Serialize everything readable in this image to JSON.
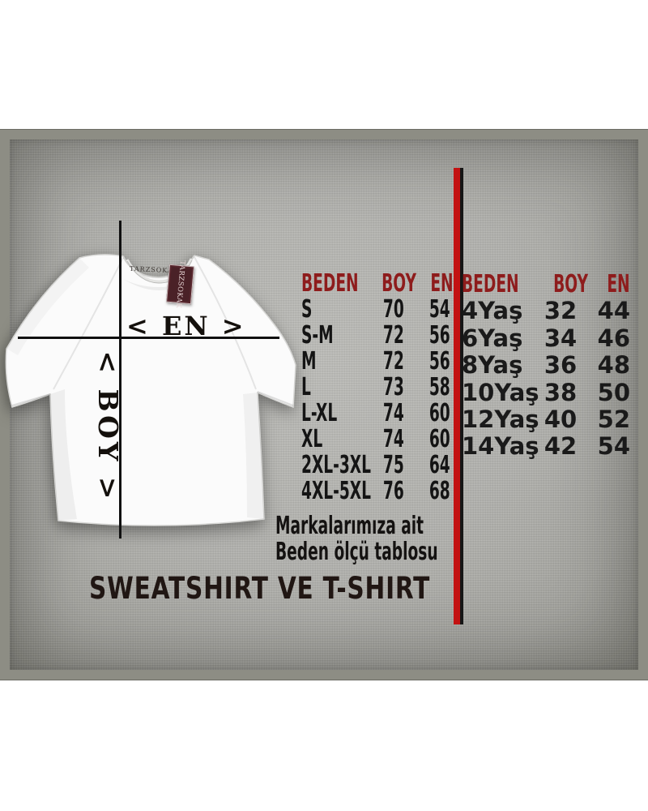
{
  "title": "SWEATSHIRT VE T-SHIRT",
  "note": {
    "line1": "Markalarımıza ait",
    "line2": "Beden ölçü tablosu"
  },
  "shirt": {
    "collar_brand": "TARZSOKAK",
    "tag_brand": "TARZSOKAK",
    "width_label": "< EN >",
    "length_label": "< BOY >"
  },
  "adult_table": {
    "headers": [
      "BEDEN",
      "BOY",
      "EN"
    ],
    "rows": [
      [
        "S",
        "70",
        "54"
      ],
      [
        "S-M",
        "72",
        "56"
      ],
      [
        "M",
        "72",
        "56"
      ],
      [
        "L",
        "73",
        "58"
      ],
      [
        "L-XL",
        "74",
        "60"
      ],
      [
        "XL",
        "74",
        "60"
      ],
      [
        "2XL-3XL",
        "75",
        "64"
      ],
      [
        "4XL-5XL",
        "76",
        "68"
      ]
    ]
  },
  "kids_table": {
    "headers": [
      "BEDEN",
      "BOY",
      "EN"
    ],
    "rows": [
      [
        "4Yaş",
        "32",
        "44"
      ],
      [
        "6Yaş",
        "34",
        "46"
      ],
      [
        "8Yaş",
        "36",
        "48"
      ],
      [
        "10Yaş",
        "38",
        "50"
      ],
      [
        "12Yaş",
        "40",
        "52"
      ],
      [
        "14Yaş",
        "42",
        "54"
      ]
    ]
  },
  "colors": {
    "header_red": "#8e1c1c",
    "divider_red": "#c31212",
    "tag_maroon": "#4a2127",
    "panel_gray": "#b2b2ae",
    "frame_gray": "#8d8d84"
  }
}
